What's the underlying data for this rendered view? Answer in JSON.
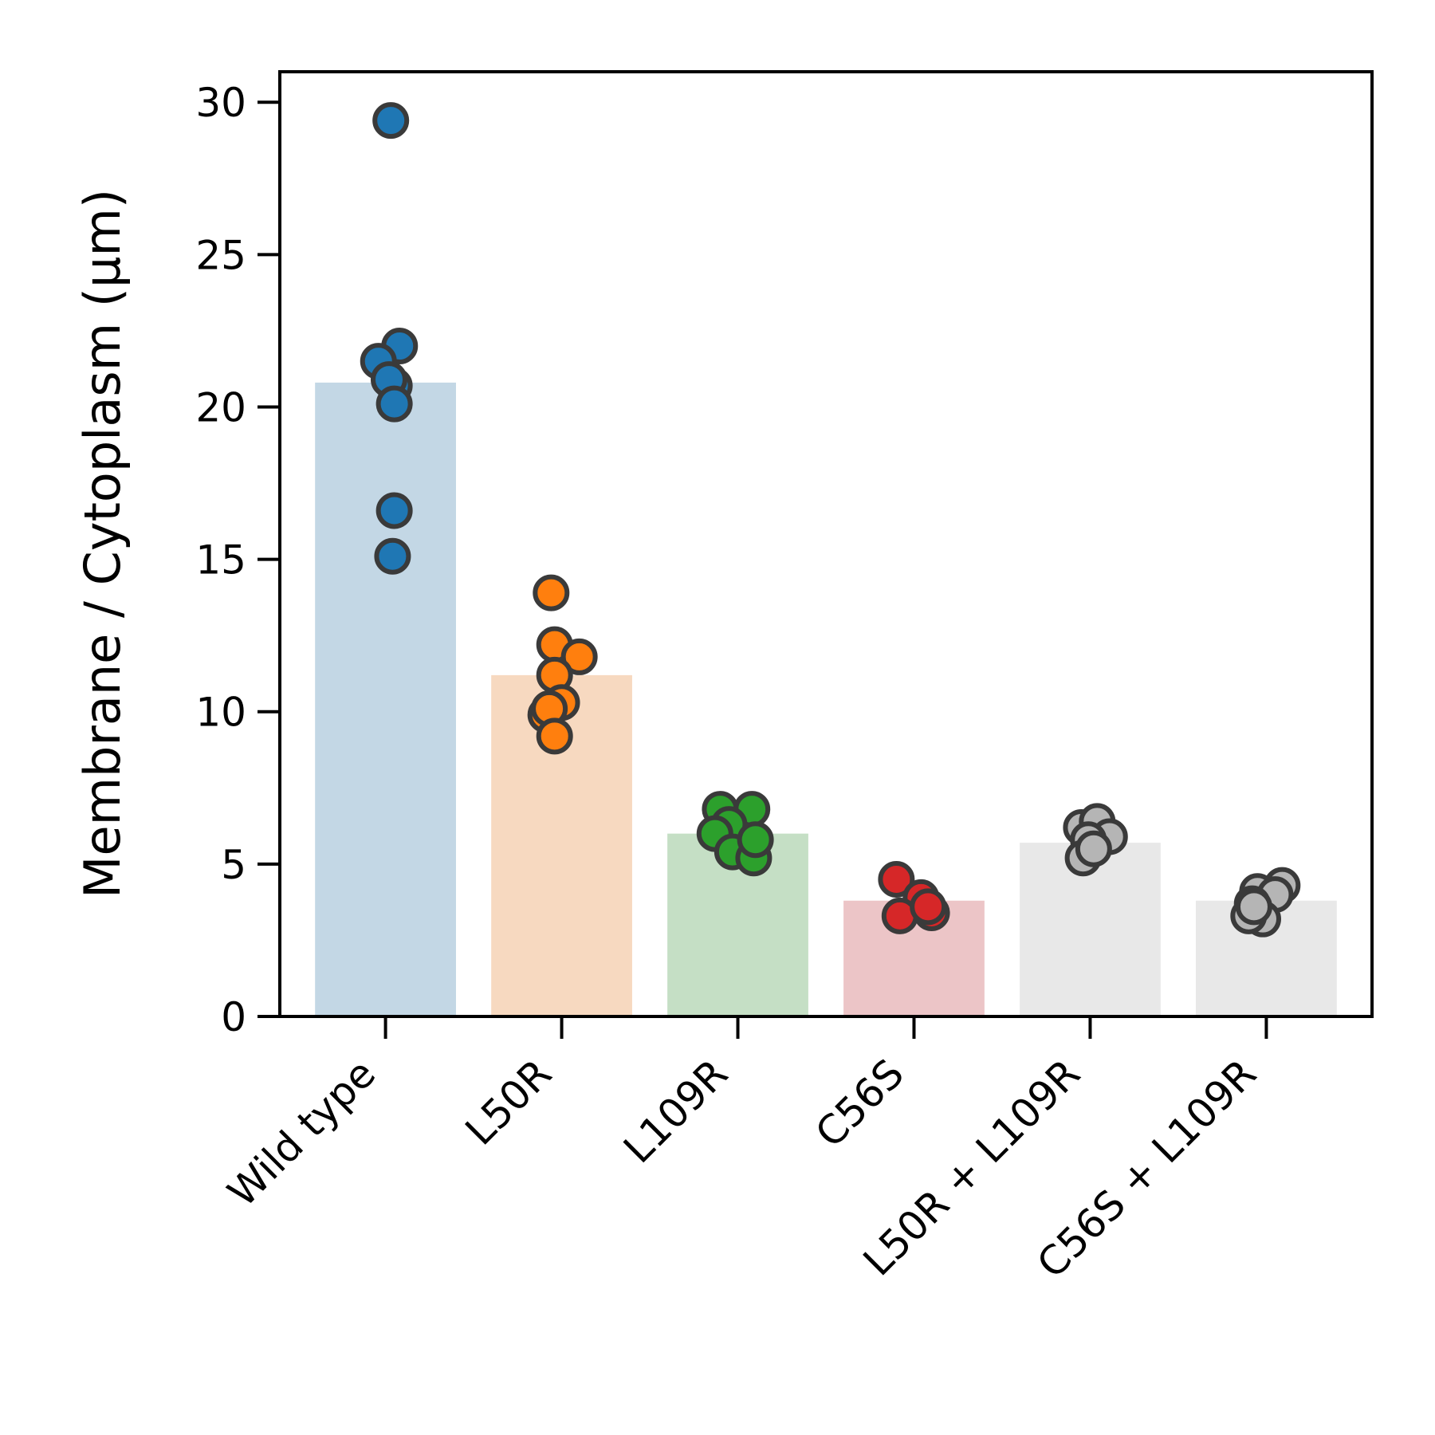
{
  "chart_data": {
    "type": "bar",
    "title": "",
    "xlabel": "",
    "ylabel": "Membrane / Cytoplasm (µm)",
    "ylim": [
      0,
      31
    ],
    "yticks": [
      0,
      5,
      10,
      15,
      20,
      25,
      30
    ],
    "grid": false,
    "legend": "none",
    "categories": [
      "Wild type",
      "L50R",
      "L109R",
      "C56S",
      "L50R + L109R",
      "C56S + L109R"
    ],
    "values": [
      20.8,
      11.2,
      6.0,
      3.8,
      5.7,
      3.8
    ],
    "bar_colors": [
      "#c3d7e5",
      "#f7d9c0",
      "#c5dfc5",
      "#ecc5c7",
      "#e8e8e8",
      "#e8e8e8"
    ],
    "point_colors": [
      "#1f77b4",
      "#ff7f0e",
      "#2ca02c",
      "#d62728",
      "#b5b5b5",
      "#b5b5b5"
    ],
    "point_edge_color": "#3a3a3a",
    "points": [
      [
        {
          "jitter": 0.03,
          "y": 29.4
        },
        {
          "jitter": 0.08,
          "y": 22.0
        },
        {
          "jitter": -0.04,
          "y": 21.5
        },
        {
          "jitter": 0.05,
          "y": 20.7
        },
        {
          "jitter": 0.02,
          "y": 20.9
        },
        {
          "jitter": 0.05,
          "y": 20.1
        },
        {
          "jitter": 0.05,
          "y": 16.6
        },
        {
          "jitter": 0.04,
          "y": 15.1
        }
      ],
      [
        {
          "jitter": -0.06,
          "y": 13.9
        },
        {
          "jitter": -0.04,
          "y": 12.2
        },
        {
          "jitter": 0.1,
          "y": 11.8
        },
        {
          "jitter": -0.04,
          "y": 11.2
        },
        {
          "jitter": 0.0,
          "y": 10.3
        },
        {
          "jitter": -0.09,
          "y": 9.9
        },
        {
          "jitter": -0.07,
          "y": 10.1
        },
        {
          "jitter": -0.04,
          "y": 9.2
        }
      ],
      [
        {
          "jitter": -0.1,
          "y": 6.8
        },
        {
          "jitter": 0.08,
          "y": 6.8
        },
        {
          "jitter": -0.05,
          "y": 6.3
        },
        {
          "jitter": -0.13,
          "y": 6.0
        },
        {
          "jitter": -0.03,
          "y": 5.4
        },
        {
          "jitter": 0.09,
          "y": 5.2
        },
        {
          "jitter": 0.1,
          "y": 5.8
        }
      ],
      [
        {
          "jitter": -0.1,
          "y": 4.5
        },
        {
          "jitter": 0.04,
          "y": 3.9
        },
        {
          "jitter": -0.08,
          "y": 3.3
        },
        {
          "jitter": 0.1,
          "y": 3.4
        },
        {
          "jitter": 0.08,
          "y": 3.6
        }
      ],
      [
        {
          "jitter": -0.05,
          "y": 6.2
        },
        {
          "jitter": 0.04,
          "y": 6.4
        },
        {
          "jitter": 0.11,
          "y": 5.9
        },
        {
          "jitter": -0.01,
          "y": 5.8
        },
        {
          "jitter": -0.04,
          "y": 5.2
        },
        {
          "jitter": 0.02,
          "y": 5.5
        }
      ],
      [
        {
          "jitter": -0.05,
          "y": 4.1
        },
        {
          "jitter": 0.09,
          "y": 4.3
        },
        {
          "jitter": 0.05,
          "y": 4.0
        },
        {
          "jitter": -0.08,
          "y": 3.7
        },
        {
          "jitter": -0.02,
          "y": 3.2
        },
        {
          "jitter": -0.1,
          "y": 3.3
        },
        {
          "jitter": -0.07,
          "y": 3.6
        }
      ]
    ]
  }
}
